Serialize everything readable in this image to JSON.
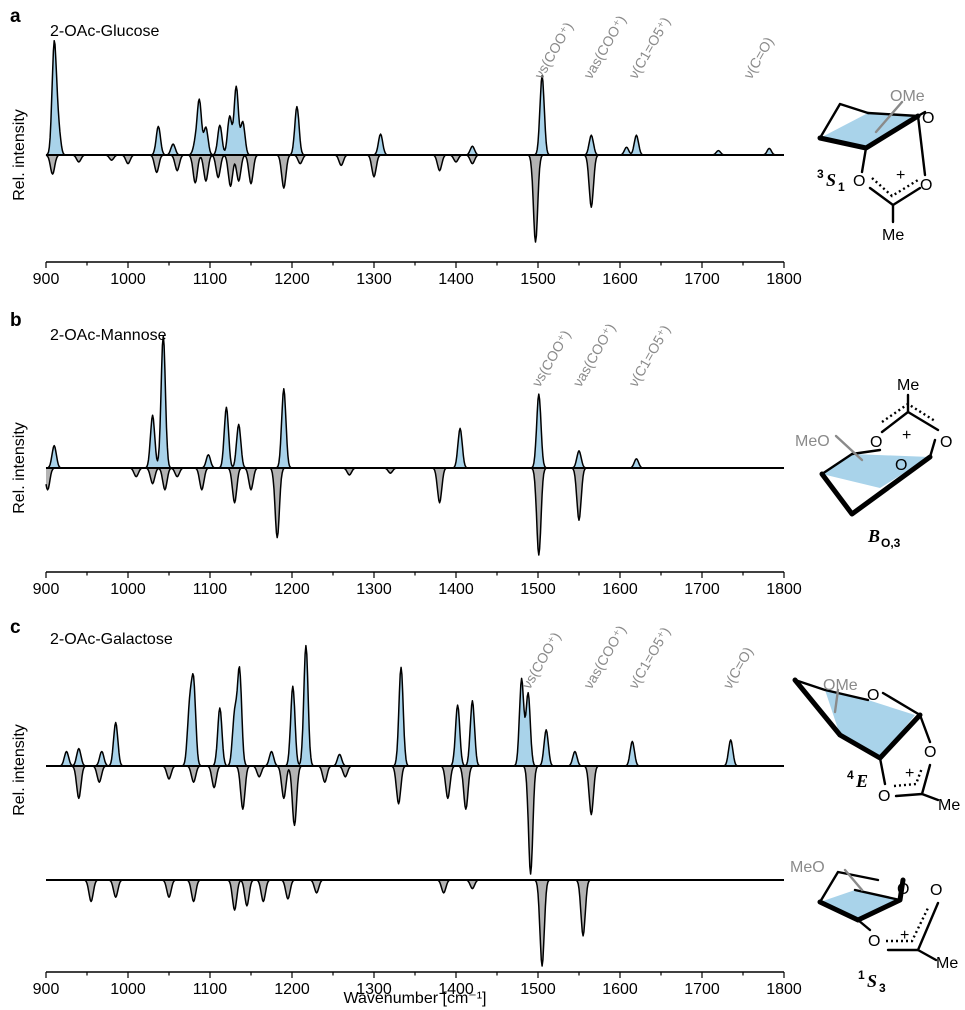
{
  "chart_data": {
    "type": "line",
    "xlabel": "Wavenumber [cm⁻¹]",
    "ylabel": "Rel. intensity",
    "xlim": [
      900,
      1800
    ],
    "xticks": [
      900,
      1000,
      1100,
      1200,
      1300,
      1400,
      1500,
      1600,
      1700,
      1800
    ],
    "panels": [
      {
        "letter": "a",
        "title": "2-OAc-Glucose",
        "conformer": {
          "label": "S",
          "sup": "3",
          "sub": "1"
        },
        "molecule_labels": [
          "OMe",
          "O",
          "O",
          "+",
          "O",
          "Me"
        ],
        "annotations": [
          {
            "text": "νs(COO⁺)",
            "x": 1505
          },
          {
            "text": "νas(COO⁺)",
            "x": 1565
          },
          {
            "text": "ν(C1=O5⁺)",
            "x": 1620
          },
          {
            "text": "ν(C=O)",
            "x": 1760
          }
        ],
        "experimental_peaks": [
          [
            910,
            1.0
          ],
          [
            915,
            0.25
          ],
          [
            1037,
            0.26
          ],
          [
            1055,
            0.1
          ],
          [
            1082,
            0.1
          ],
          [
            1087,
            0.49
          ],
          [
            1095,
            0.25
          ],
          [
            1112,
            0.27
          ],
          [
            1124,
            0.35
          ],
          [
            1132,
            0.62
          ],
          [
            1140,
            0.3
          ],
          [
            1206,
            0.44
          ],
          [
            1308,
            0.19
          ],
          [
            1420,
            0.08
          ],
          [
            1505,
            0.72
          ],
          [
            1565,
            0.18
          ],
          [
            1608,
            0.07
          ],
          [
            1620,
            0.18
          ],
          [
            1720,
            0.04
          ],
          [
            1782,
            0.06
          ]
        ],
        "calculated_peaks": [
          [
            908,
            0.22
          ],
          [
            940,
            0.08
          ],
          [
            980,
            0.06
          ],
          [
            1000,
            0.1
          ],
          [
            1035,
            0.2
          ],
          [
            1060,
            0.18
          ],
          [
            1082,
            0.32
          ],
          [
            1095,
            0.3
          ],
          [
            1110,
            0.26
          ],
          [
            1125,
            0.36
          ],
          [
            1135,
            0.3
          ],
          [
            1150,
            0.33
          ],
          [
            1190,
            0.38
          ],
          [
            1210,
            0.1
          ],
          [
            1260,
            0.12
          ],
          [
            1300,
            0.25
          ],
          [
            1380,
            0.18
          ],
          [
            1400,
            0.08
          ],
          [
            1420,
            0.1
          ],
          [
            1497,
            1.0
          ],
          [
            1565,
            0.6
          ]
        ]
      },
      {
        "letter": "b",
        "title": "2-OAc-Mannose",
        "conformer": {
          "label": "B",
          "sup": "",
          "sub": "O,3"
        },
        "molecule_labels": [
          "Me",
          "MeO",
          "O",
          "O",
          "O",
          "+",
          "O"
        ],
        "annotations": [
          {
            "text": "νs(COO⁺)",
            "x": 1502
          },
          {
            "text": "νas(COO⁺)",
            "x": 1552
          },
          {
            "text": "ν(C1=O5⁺)",
            "x": 1620
          }
        ],
        "experimental_peaks": [
          [
            910,
            0.17
          ],
          [
            1030,
            0.4
          ],
          [
            1043,
            1.0
          ],
          [
            1098,
            0.1
          ],
          [
            1120,
            0.46
          ],
          [
            1135,
            0.33
          ],
          [
            1190,
            0.6
          ],
          [
            1405,
            0.3
          ],
          [
            1501,
            0.56
          ],
          [
            1550,
            0.13
          ],
          [
            1620,
            0.07
          ]
        ],
        "calculated_peaks": [
          [
            902,
            0.25
          ],
          [
            1010,
            0.1
          ],
          [
            1030,
            0.18
          ],
          [
            1045,
            0.25
          ],
          [
            1060,
            0.1
          ],
          [
            1090,
            0.25
          ],
          [
            1130,
            0.4
          ],
          [
            1150,
            0.25
          ],
          [
            1182,
            0.8
          ],
          [
            1270,
            0.08
          ],
          [
            1320,
            0.06
          ],
          [
            1380,
            0.4
          ],
          [
            1501,
            1.0
          ],
          [
            1550,
            0.6
          ]
        ]
      },
      {
        "letter": "c",
        "title": "2-OAc-Galactose",
        "conformers": [
          {
            "label": "E",
            "sup": "4",
            "sub": ""
          },
          {
            "label": "S",
            "sup": "1",
            "sub": "3"
          }
        ],
        "molecule_labels": [
          "OMe",
          "O",
          "O",
          "+",
          "O",
          "Me",
          "MeO",
          "O",
          "O",
          "+",
          "O",
          "Me"
        ],
        "annotations": [
          {
            "text": "νs(COO⁺)",
            "x": 1490
          },
          {
            "text": "νas(COO⁺)",
            "x": 1565
          },
          {
            "text": "ν(C1=O5⁺)",
            "x": 1620
          },
          {
            "text": "ν(C=O)",
            "x": 1735
          }
        ],
        "experimental_peaks": [
          [
            925,
            0.1
          ],
          [
            940,
            0.12
          ],
          [
            968,
            0.1
          ],
          [
            985,
            0.3
          ],
          [
            1075,
            0.38
          ],
          [
            1080,
            0.56
          ],
          [
            1112,
            0.4
          ],
          [
            1130,
            0.35
          ],
          [
            1136,
            0.66
          ],
          [
            1175,
            0.1
          ],
          [
            1201,
            0.55
          ],
          [
            1217,
            0.83
          ],
          [
            1258,
            0.08
          ],
          [
            1333,
            0.68
          ],
          [
            1402,
            0.42
          ],
          [
            1420,
            0.45
          ],
          [
            1480,
            0.6
          ],
          [
            1488,
            0.5
          ],
          [
            1510,
            0.25
          ],
          [
            1545,
            0.1
          ],
          [
            1615,
            0.17
          ],
          [
            1735,
            0.18
          ]
        ],
        "calculated_peaks_4E": [
          [
            940,
            0.3
          ],
          [
            965,
            0.15
          ],
          [
            1050,
            0.12
          ],
          [
            1080,
            0.15
          ],
          [
            1105,
            0.2
          ],
          [
            1140,
            0.4
          ],
          [
            1160,
            0.1
          ],
          [
            1190,
            0.3
          ],
          [
            1203,
            0.55
          ],
          [
            1240,
            0.15
          ],
          [
            1265,
            0.1
          ],
          [
            1330,
            0.35
          ],
          [
            1390,
            0.3
          ],
          [
            1412,
            0.4
          ],
          [
            1491,
            1.0
          ],
          [
            1565,
            0.45
          ]
        ],
        "calculated_peaks_1S3": [
          [
            955,
            0.25
          ],
          [
            985,
            0.2
          ],
          [
            1050,
            0.2
          ],
          [
            1080,
            0.25
          ],
          [
            1130,
            0.35
          ],
          [
            1145,
            0.3
          ],
          [
            1165,
            0.25
          ],
          [
            1195,
            0.22
          ],
          [
            1230,
            0.15
          ],
          [
            1385,
            0.15
          ],
          [
            1420,
            0.1
          ],
          [
            1505,
            1.0
          ],
          [
            1555,
            0.65
          ]
        ]
      }
    ]
  }
}
